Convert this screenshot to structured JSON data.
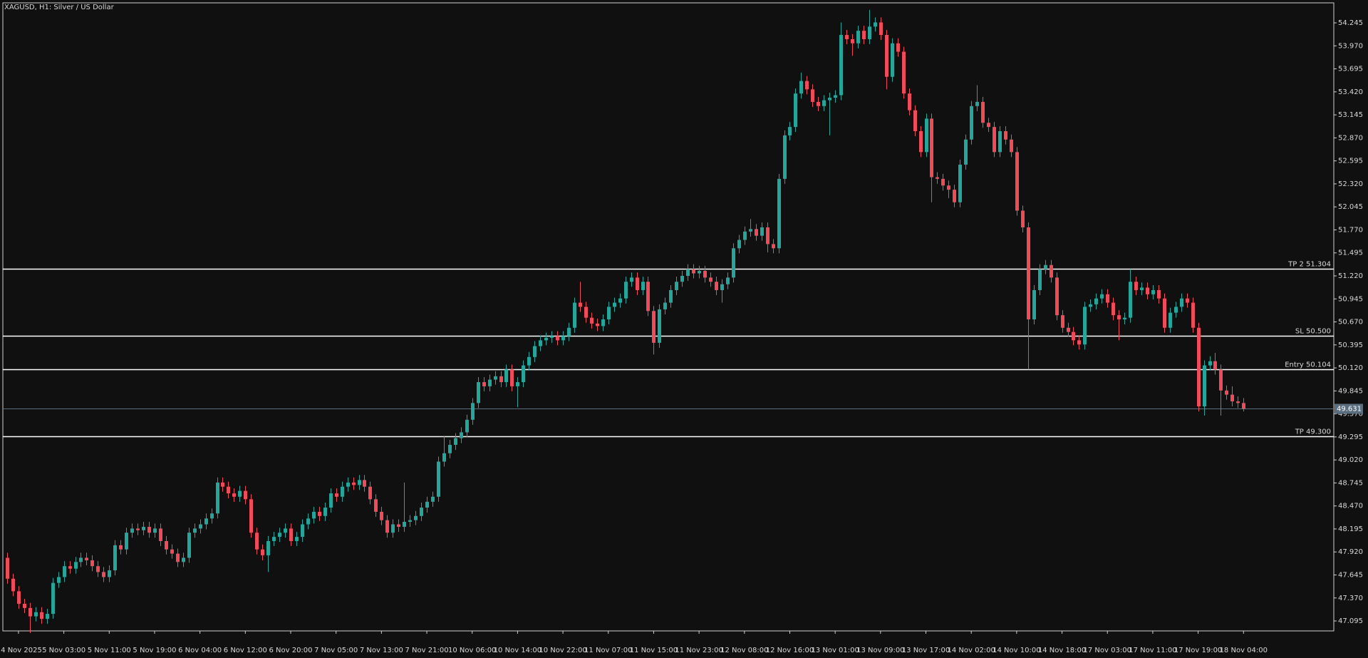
{
  "chart_data": {
    "type": "candlestick",
    "title": "XAGUSD, H1:  Silver / US Dollar",
    "up_color": "#26a69a",
    "down_color": "#ef4b5b",
    "ylim": [
      46.976,
      54.484
    ],
    "yticks": [
      {
        "value": 54.245,
        "label": "54.245"
      },
      {
        "value": 53.97,
        "label": "53.970"
      },
      {
        "value": 53.695,
        "label": "53.695"
      },
      {
        "value": 53.42,
        "label": "53.420"
      },
      {
        "value": 53.145,
        "label": "53.145"
      },
      {
        "value": 52.87,
        "label": "52.870"
      },
      {
        "value": 52.595,
        "label": "52.595"
      },
      {
        "value": 52.32,
        "label": "52.320"
      },
      {
        "value": 52.045,
        "label": "52.045"
      },
      {
        "value": 51.77,
        "label": "51.770"
      },
      {
        "value": 51.495,
        "label": "51.495"
      },
      {
        "value": 51.22,
        "label": "51.220"
      },
      {
        "value": 50.945,
        "label": "50.945"
      },
      {
        "value": 50.67,
        "label": "50.670"
      },
      {
        "value": 50.395,
        "label": "50.395"
      },
      {
        "value": 50.12,
        "label": "50.120"
      },
      {
        "value": 49.845,
        "label": "49.845"
      },
      {
        "value": 49.57,
        "label": "49.570"
      },
      {
        "value": 49.295,
        "label": "49.295"
      },
      {
        "value": 49.02,
        "label": "49.020"
      },
      {
        "value": 48.745,
        "label": "48.745"
      },
      {
        "value": 48.47,
        "label": "48.470"
      },
      {
        "value": 48.195,
        "label": "48.195"
      },
      {
        "value": 47.92,
        "label": "47.920"
      },
      {
        "value": 47.645,
        "label": "47.645"
      },
      {
        "value": 47.37,
        "label": "47.370"
      },
      {
        "value": 47.095,
        "label": "47.095"
      }
    ],
    "levels": [
      {
        "label": "TP 2 51.304",
        "value": 51.304,
        "color": "#ffffff"
      },
      {
        "label": "SL 50.500",
        "value": 50.5,
        "color": "#ffffff"
      },
      {
        "label": "Entry 50.104",
        "value": 50.104,
        "color": "#ffffff"
      },
      {
        "label": "TP 49.300",
        "value": 49.3,
        "color": "#ffffff"
      }
    ],
    "last_price": {
      "value": 49.631,
      "label": "49.631",
      "color": "#5a6e80"
    },
    "categories": [
      null,
      null,
      "4 Nov 2025",
      null,
      null,
      null,
      null,
      null,
      null,
      null,
      "5 Nov 03:00",
      null,
      null,
      null,
      null,
      null,
      null,
      null,
      "5 Nov 11:00",
      null,
      null,
      null,
      null,
      null,
      null,
      null,
      "5 Nov 19:00",
      null,
      null,
      null,
      null,
      null,
      null,
      null,
      "6 Nov 04:00",
      null,
      null,
      null,
      null,
      null,
      null,
      null,
      "6 Nov 12:00",
      null,
      null,
      null,
      null,
      null,
      null,
      null,
      "6 Nov 20:00",
      null,
      null,
      null,
      null,
      null,
      null,
      null,
      "7 Nov 05:00",
      null,
      null,
      null,
      null,
      null,
      null,
      null,
      "7 Nov 13:00",
      null,
      null,
      null,
      null,
      null,
      null,
      null,
      "7 Nov 21:00",
      null,
      null,
      null,
      null,
      null,
      null,
      null,
      "10 Nov 06:00",
      null,
      null,
      null,
      null,
      null,
      null,
      null,
      "10 Nov 14:00",
      null,
      null,
      null,
      null,
      null,
      null,
      null,
      "10 Nov 22:00",
      null,
      null,
      null,
      null,
      null,
      null,
      null,
      "11 Nov 07:00",
      null,
      null,
      null,
      null,
      null,
      null,
      null,
      "11 Nov 15:00",
      null,
      null,
      null,
      null,
      null,
      null,
      null,
      "11 Nov 23:00",
      null,
      null,
      null,
      null,
      null,
      null,
      null,
      "12 Nov 08:00",
      null,
      null,
      null,
      null,
      null,
      null,
      null,
      "12 Nov 16:00",
      null,
      null,
      null,
      null,
      null,
      null,
      null,
      "13 Nov 01:00",
      null,
      null,
      null,
      null,
      null,
      null,
      null,
      "13 Nov 09:00",
      null,
      null,
      null,
      null,
      null,
      null,
      null,
      "13 Nov 17:00",
      null,
      null,
      null,
      null,
      null,
      null,
      null,
      "14 Nov 02:00",
      null,
      null,
      null,
      null,
      null,
      null,
      null,
      "14 Nov 10:00",
      null,
      null,
      null,
      null,
      null,
      null,
      null,
      "14 Nov 18:00",
      null,
      null,
      null,
      null,
      null,
      null,
      null,
      "17 Nov 03:00",
      null,
      null,
      null,
      null,
      null,
      null,
      null,
      "17 Nov 11:00",
      null,
      null,
      null,
      null,
      null,
      null,
      null,
      "17 Nov 19:00",
      null,
      null,
      null,
      null,
      null,
      null,
      null,
      "18 Nov 04:00"
    ],
    "open": [
      47.85,
      47.6,
      47.45,
      47.3,
      47.25,
      47.15,
      47.2,
      47.12,
      47.18,
      47.55,
      47.62,
      47.75,
      47.72,
      47.8,
      47.85,
      47.82,
      47.75,
      47.68,
      47.62,
      47.7,
      48.0,
      47.95,
      48.15,
      48.2,
      48.18,
      48.22,
      48.15,
      48.2,
      48.05,
      47.95,
      47.9,
      47.8,
      47.85,
      48.15,
      48.2,
      48.25,
      48.32,
      48.38,
      48.75,
      48.7,
      48.62,
      48.58,
      48.65,
      48.55,
      48.15,
      47.95,
      47.88,
      48.05,
      48.1,
      48.15,
      48.2,
      48.05,
      48.1,
      48.25,
      48.32,
      48.4,
      48.35,
      48.45,
      48.62,
      48.58,
      48.7,
      48.75,
      48.72,
      48.78,
      48.7,
      48.55,
      48.4,
      48.3,
      48.15,
      48.25,
      48.22,
      48.28,
      48.3,
      48.35,
      48.45,
      48.52,
      48.58,
      49.0,
      49.1,
      49.2,
      49.28,
      49.35,
      49.5,
      49.7,
      49.95,
      49.9,
      49.98,
      50.02,
      49.95,
      50.1,
      49.9,
      49.95,
      50.15,
      50.25,
      50.38,
      50.45,
      50.48,
      50.5,
      50.45,
      50.5,
      50.6,
      50.9,
      50.85,
      50.72,
      50.65,
      50.62,
      50.7,
      50.85,
      50.9,
      50.95,
      51.15,
      51.2,
      51.05,
      51.15,
      50.8,
      50.42,
      50.82,
      50.9,
      51.05,
      51.15,
      51.22,
      51.3,
      51.25,
      51.28,
      51.2,
      51.15,
      51.05,
      51.12,
      51.2,
      51.55,
      51.65,
      51.75,
      51.78,
      51.7,
      51.8,
      51.6,
      51.55,
      52.38,
      52.9,
      53.0,
      53.4,
      53.55,
      53.45,
      53.3,
      53.25,
      53.32,
      53.35,
      53.38,
      54.1,
      54.05,
      54.0,
      54.15,
      54.05,
      54.2,
      54.25,
      54.1,
      53.6,
      54.0,
      53.9,
      53.4,
      53.2,
      52.95,
      52.7,
      53.1,
      52.4,
      52.38,
      52.3,
      52.25,
      52.1,
      52.55,
      52.85,
      53.25,
      53.3,
      53.05,
      53.0,
      52.7,
      52.95,
      52.85,
      52.7,
      52.0,
      51.8,
      50.7,
      51.05,
      51.3,
      51.35,
      51.2,
      50.75,
      50.6,
      50.55,
      50.45,
      50.4,
      50.85,
      50.88,
      50.95,
      51.0,
      50.9,
      50.75,
      50.7,
      50.72,
      51.15,
      51.05,
      51.08,
      51.0,
      51.05,
      50.95,
      50.6,
      50.78,
      50.85,
      50.95,
      50.9,
      50.6,
      49.66,
      50.15,
      50.2,
      50.1,
      49.85,
      49.8,
      49.72,
      49.7
    ],
    "high": [
      47.91,
      47.66,
      47.51,
      47.36,
      47.31,
      47.26,
      47.26,
      47.24,
      47.61,
      47.68,
      47.81,
      47.81,
      47.86,
      47.91,
      47.91,
      47.88,
      47.81,
      47.74,
      47.76,
      48.06,
      48.06,
      48.21,
      48.26,
      48.26,
      48.28,
      48.28,
      48.26,
      48.26,
      48.11,
      48.01,
      47.96,
      47.91,
      48.21,
      48.26,
      48.31,
      48.38,
      48.44,
      48.81,
      48.81,
      48.76,
      48.68,
      48.71,
      48.71,
      48.61,
      48.21,
      48.01,
      48.11,
      48.16,
      48.21,
      48.26,
      48.26,
      48.16,
      48.31,
      48.38,
      48.46,
      48.46,
      48.51,
      48.68,
      48.68,
      48.76,
      48.81,
      48.81,
      48.84,
      48.84,
      48.76,
      48.61,
      48.46,
      48.36,
      48.31,
      48.31,
      48.75,
      48.36,
      48.41,
      48.51,
      48.58,
      48.64,
      49.06,
      49.3,
      49.26,
      49.34,
      49.41,
      49.56,
      49.76,
      50.01,
      50.01,
      50.04,
      50.08,
      50.08,
      50.16,
      50.16,
      50.01,
      50.21,
      50.31,
      50.44,
      50.51,
      50.54,
      50.56,
      50.56,
      50.56,
      50.66,
      50.96,
      51.15,
      50.91,
      50.78,
      50.71,
      50.76,
      50.91,
      50.96,
      51.01,
      51.21,
      51.26,
      51.26,
      51.21,
      51.21,
      50.86,
      50.88,
      50.96,
      51.11,
      51.21,
      51.28,
      51.36,
      51.36,
      51.34,
      51.34,
      51.26,
      51.21,
      51.18,
      51.26,
      51.61,
      51.71,
      51.81,
      51.9,
      51.84,
      51.86,
      51.86,
      51.66,
      52.44,
      52.96,
      53.06,
      53.46,
      53.65,
      53.61,
      53.51,
      53.36,
      53.38,
      53.41,
      53.44,
      54.25,
      54.16,
      54.11,
      54.21,
      54.21,
      54.4,
      54.31,
      54.31,
      54.16,
      54.06,
      54.06,
      53.96,
      53.46,
      53.26,
      53.01,
      53.16,
      53.16,
      52.46,
      52.44,
      52.36,
      52.31,
      52.61,
      52.91,
      53.31,
      53.5,
      53.36,
      53.11,
      53.06,
      53.01,
      53.01,
      52.91,
      52.76,
      52.06,
      51.86,
      51.11,
      51.36,
      51.41,
      51.41,
      51.26,
      50.81,
      50.66,
      50.61,
      50.51,
      50.91,
      50.94,
      51.01,
      51.06,
      51.06,
      50.96,
      50.81,
      50.78,
      51.3,
      51.21,
      51.14,
      51.14,
      51.11,
      51.11,
      51.01,
      50.84,
      50.91,
      51.01,
      51.01,
      50.96,
      50.66,
      50.21,
      50.26,
      50.3,
      50.16,
      49.91,
      49.9,
      49.78,
      49.76
    ],
    "low": [
      47.54,
      47.39,
      47.24,
      47.19,
      46.95,
      47.09,
      47.06,
      47.06,
      47.12,
      47.49,
      47.56,
      47.66,
      47.66,
      47.74,
      47.76,
      47.69,
      47.62,
      47.56,
      47.56,
      47.64,
      47.89,
      47.89,
      48.09,
      48.12,
      48.12,
      48.09,
      48.09,
      47.99,
      47.89,
      47.84,
      47.74,
      47.74,
      47.79,
      48.09,
      48.14,
      48.19,
      48.26,
      48.32,
      48.64,
      48.56,
      48.52,
      48.52,
      48.49,
      48.09,
      47.89,
      47.82,
      47.68,
      47.99,
      48.04,
      48.09,
      47.99,
      47.99,
      48.04,
      48.19,
      48.26,
      48.29,
      48.29,
      48.39,
      48.52,
      48.52,
      48.64,
      48.66,
      48.66,
      48.64,
      48.49,
      48.34,
      48.24,
      48.09,
      48.09,
      48.16,
      48.16,
      48.22,
      48.24,
      48.29,
      48.39,
      48.46,
      48.52,
      48.94,
      49.04,
      49.14,
      49.22,
      49.29,
      49.44,
      49.64,
      49.84,
      49.84,
      49.92,
      49.89,
      49.89,
      49.84,
      49.65,
      49.89,
      50.09,
      50.19,
      50.32,
      50.39,
      50.42,
      50.39,
      50.39,
      50.44,
      50.54,
      50.79,
      50.66,
      50.59,
      50.56,
      50.56,
      50.64,
      50.79,
      50.84,
      50.89,
      51.09,
      50.99,
      50.99,
      50.74,
      50.28,
      50.36,
      50.76,
      50.84,
      50.99,
      51.09,
      51.16,
      51.19,
      51.19,
      51.14,
      51.09,
      50.99,
      50.9,
      51.06,
      51.14,
      51.49,
      51.59,
      51.69,
      51.64,
      51.64,
      51.5,
      51.49,
      51.49,
      52.32,
      52.84,
      52.94,
      53.34,
      53.39,
      53.24,
      53.19,
      53.19,
      52.9,
      53.29,
      53.32,
      53.99,
      53.85,
      53.94,
      53.99,
      53.99,
      54.14,
      54.04,
      53.45,
      53.54,
      53.84,
      53.34,
      53.14,
      52.89,
      52.64,
      52.64,
      52.1,
      52.32,
      52.24,
      52.15,
      52.04,
      52.04,
      52.49,
      52.79,
      53.19,
      52.99,
      52.94,
      52.64,
      52.64,
      52.79,
      52.64,
      51.94,
      51.74,
      50.1,
      50.64,
      50.99,
      51.24,
      51.14,
      50.69,
      50.54,
      50.49,
      50.39,
      50.34,
      50.34,
      50.79,
      50.82,
      50.89,
      50.84,
      50.69,
      50.45,
      50.64,
      50.66,
      50.99,
      50.99,
      50.94,
      50.94,
      50.89,
      50.54,
      50.54,
      50.72,
      50.79,
      50.84,
      50.54,
      49.6,
      49.55,
      50.09,
      50.04,
      49.55,
      49.74,
      49.66,
      49.64,
      49.6
    ],
    "close": [
      47.6,
      47.45,
      47.3,
      47.25,
      47.15,
      47.2,
      47.12,
      47.18,
      47.55,
      47.62,
      47.75,
      47.72,
      47.8,
      47.85,
      47.82,
      47.75,
      47.68,
      47.62,
      47.7,
      48.0,
      47.95,
      48.15,
      48.2,
      48.18,
      48.22,
      48.15,
      48.2,
      48.05,
      47.95,
      47.9,
      47.8,
      47.85,
      48.15,
      48.2,
      48.25,
      48.32,
      48.38,
      48.75,
      48.7,
      48.62,
      48.58,
      48.65,
      48.55,
      48.15,
      47.95,
      47.88,
      48.05,
      48.1,
      48.15,
      48.2,
      48.05,
      48.1,
      48.25,
      48.32,
      48.4,
      48.35,
      48.45,
      48.62,
      48.58,
      48.7,
      48.75,
      48.72,
      48.78,
      48.7,
      48.55,
      48.4,
      48.3,
      48.15,
      48.25,
      48.22,
      48.28,
      48.3,
      48.35,
      48.45,
      48.52,
      48.58,
      49.0,
      49.1,
      49.2,
      49.28,
      49.35,
      49.5,
      49.7,
      49.95,
      49.9,
      49.98,
      50.02,
      49.95,
      50.1,
      49.9,
      49.95,
      50.15,
      50.25,
      50.38,
      50.45,
      50.48,
      50.5,
      50.45,
      50.5,
      50.6,
      50.9,
      50.85,
      50.72,
      50.65,
      50.62,
      50.7,
      50.85,
      50.9,
      50.95,
      51.15,
      51.2,
      51.05,
      51.15,
      50.8,
      50.42,
      50.82,
      50.9,
      51.05,
      51.15,
      51.22,
      51.3,
      51.25,
      51.28,
      51.2,
      51.15,
      51.05,
      51.12,
      51.2,
      51.55,
      51.65,
      51.75,
      51.78,
      51.7,
      51.8,
      51.6,
      51.55,
      52.38,
      52.9,
      53.0,
      53.4,
      53.55,
      53.45,
      53.3,
      53.25,
      53.32,
      53.35,
      53.38,
      54.1,
      54.05,
      54.0,
      54.15,
      54.05,
      54.2,
      54.25,
      54.1,
      53.6,
      54.0,
      53.9,
      53.4,
      53.2,
      52.95,
      52.7,
      53.1,
      52.4,
      52.38,
      52.3,
      52.25,
      52.1,
      52.55,
      52.85,
      53.25,
      53.3,
      53.05,
      53.0,
      52.7,
      52.95,
      52.85,
      52.7,
      52.0,
      51.8,
      50.7,
      51.05,
      51.3,
      51.35,
      51.2,
      50.75,
      50.6,
      50.55,
      50.45,
      50.4,
      50.85,
      50.88,
      50.95,
      51.0,
      50.9,
      50.75,
      50.7,
      50.72,
      51.15,
      51.05,
      51.08,
      51.0,
      51.05,
      50.95,
      50.6,
      50.78,
      50.85,
      50.95,
      50.9,
      50.6,
      49.66,
      50.15,
      50.2,
      50.1,
      49.85,
      49.8,
      49.72,
      49.7,
      49.631
    ]
  }
}
